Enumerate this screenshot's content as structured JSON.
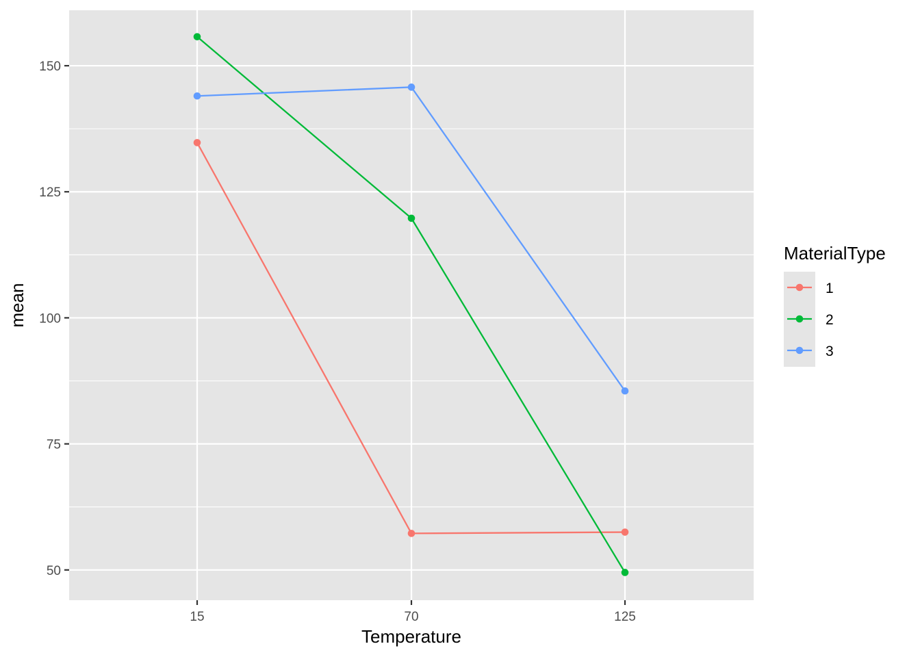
{
  "chart_data": {
    "type": "line",
    "xlabel": "Temperature",
    "ylabel": "mean",
    "categories": [
      "15",
      "70",
      "125"
    ],
    "ylim": [
      44,
      161
    ],
    "yticks": [
      50,
      75,
      100,
      125,
      150
    ],
    "grid": true,
    "legend": {
      "title": "MaterialType",
      "position": "right"
    },
    "series": [
      {
        "name": "1",
        "color": "#F8766D",
        "values": [
          134.75,
          57.25,
          57.5
        ]
      },
      {
        "name": "2",
        "color": "#00BA38",
        "values": [
          155.75,
          119.75,
          49.5
        ]
      },
      {
        "name": "3",
        "color": "#619CFF",
        "values": [
          144.0,
          145.75,
          85.5
        ]
      }
    ]
  },
  "theme": {
    "panel_background": "#E5E5E5",
    "grid_color": "#FFFFFF",
    "axis_tick_color": "#333333"
  }
}
